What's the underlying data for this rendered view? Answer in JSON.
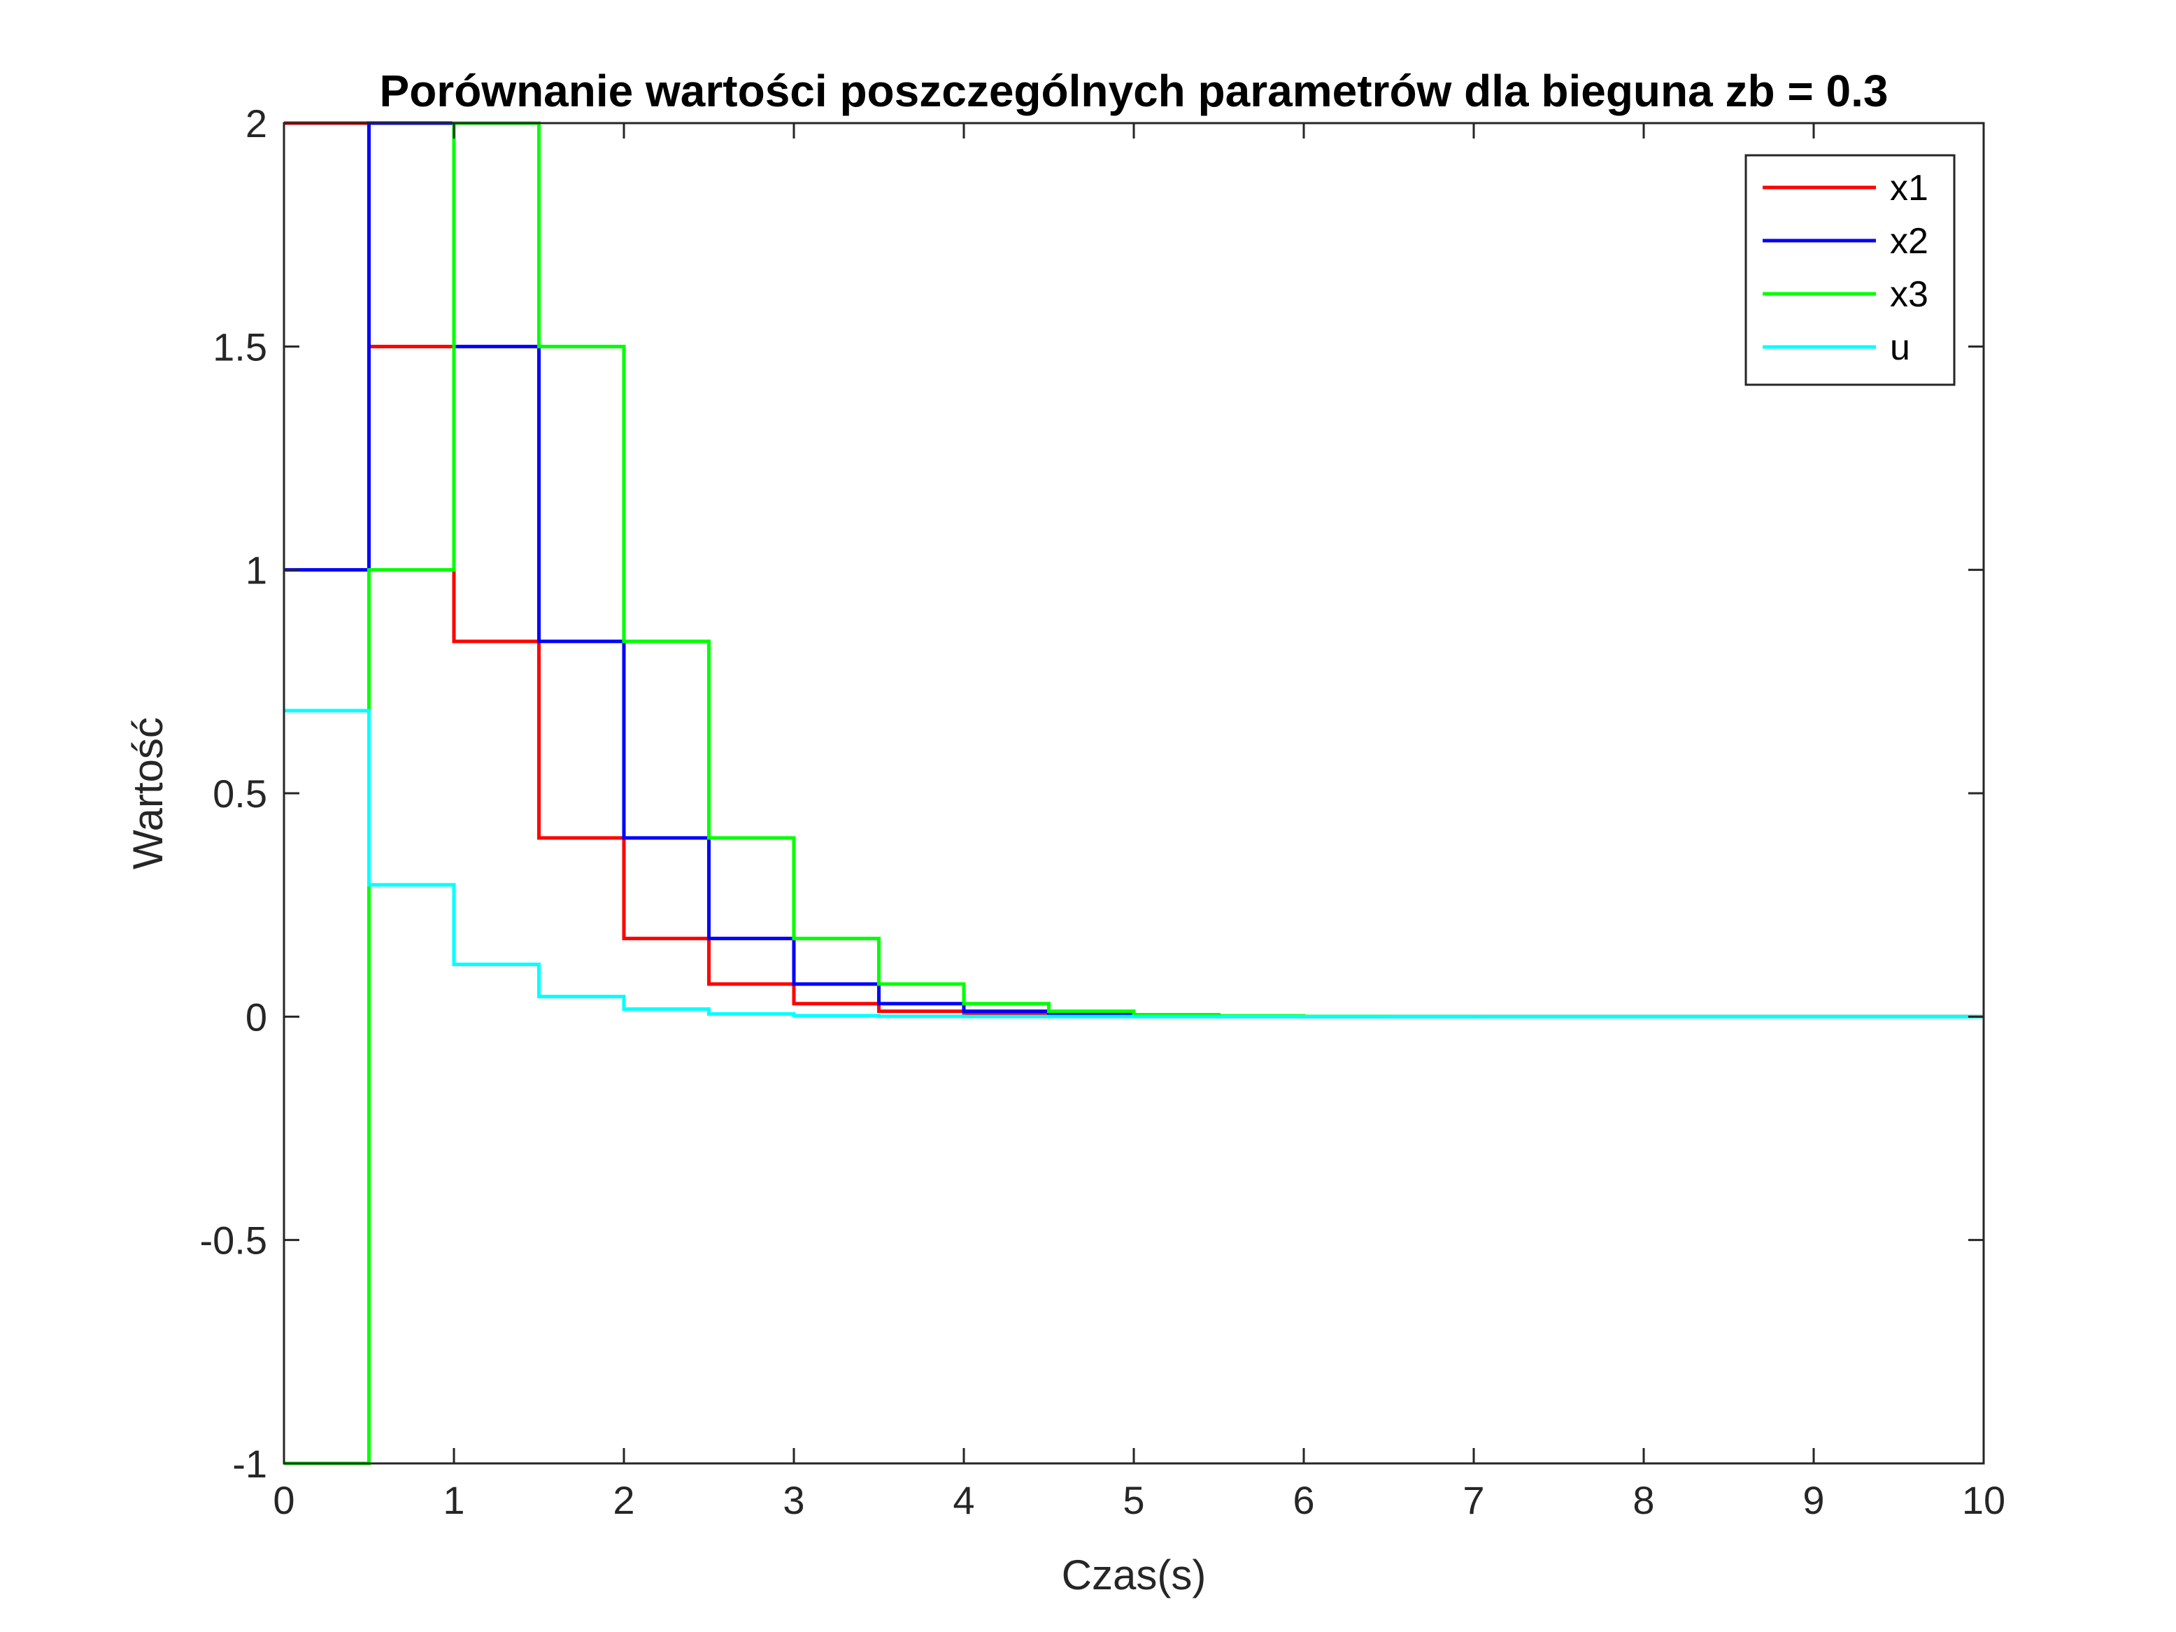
{
  "chart_data": {
    "type": "line",
    "step": true,
    "title": "Porównanie wartości poszczególnych parametrów dla bieguna zb = 0.3",
    "xlabel": "Czas(s)",
    "ylabel": "Wartość",
    "xlim": [
      0,
      10
    ],
    "ylim": [
      -1,
      2
    ],
    "xticks": [
      0,
      1,
      2,
      3,
      4,
      5,
      6,
      7,
      8,
      9,
      10
    ],
    "xtick_labels": [
      "0",
      "1",
      "2",
      "3",
      "4",
      "5",
      "6",
      "7",
      "8",
      "9",
      "10"
    ],
    "yticks": [
      -1,
      -0.5,
      0,
      0.5,
      1,
      1.5,
      2
    ],
    "ytick_labels": [
      "-1",
      "-0.5",
      "0",
      "0.5",
      "1",
      "1.5",
      "2"
    ],
    "grid": false,
    "legend_position": "top-right",
    "x": [
      0,
      0.5,
      1,
      1.5,
      2,
      2.5,
      3,
      3.5,
      4,
      4.5,
      5,
      5.5,
      6,
      6.5,
      7,
      7.5,
      8,
      8.5,
      9,
      9.5,
      10
    ],
    "series": [
      {
        "name": "x1",
        "color": "#ff0000",
        "values": [
          2,
          1.5,
          0.84,
          0.4,
          0.175,
          0.073,
          0.029,
          0.012,
          0.0045,
          0.0017,
          0.0006,
          0.0002,
          0,
          0,
          0,
          0,
          0,
          0,
          0,
          0,
          0
        ]
      },
      {
        "name": "x2",
        "color": "#0000ff",
        "values": [
          1,
          2,
          1.5,
          0.84,
          0.4,
          0.175,
          0.073,
          0.029,
          0.012,
          0.0045,
          0.0017,
          0.0006,
          0.0002,
          0,
          0,
          0,
          0,
          0,
          0,
          0,
          0
        ]
      },
      {
        "name": "x3",
        "color": "#00ff00",
        "values": [
          -1,
          1,
          2,
          1.5,
          0.84,
          0.4,
          0.175,
          0.073,
          0.029,
          0.012,
          0.0045,
          0.0017,
          0.0006,
          0.0002,
          0,
          0,
          0,
          0,
          0,
          0,
          0
        ]
      },
      {
        "name": "u",
        "color": "#00ffff",
        "values": [
          0.685,
          0.295,
          0.117,
          0.045,
          0.017,
          0.006,
          0.002,
          0.0008,
          0.0003,
          0.0001,
          0,
          0,
          0,
          0,
          0,
          0,
          0,
          0,
          0,
          0,
          0
        ]
      }
    ]
  }
}
